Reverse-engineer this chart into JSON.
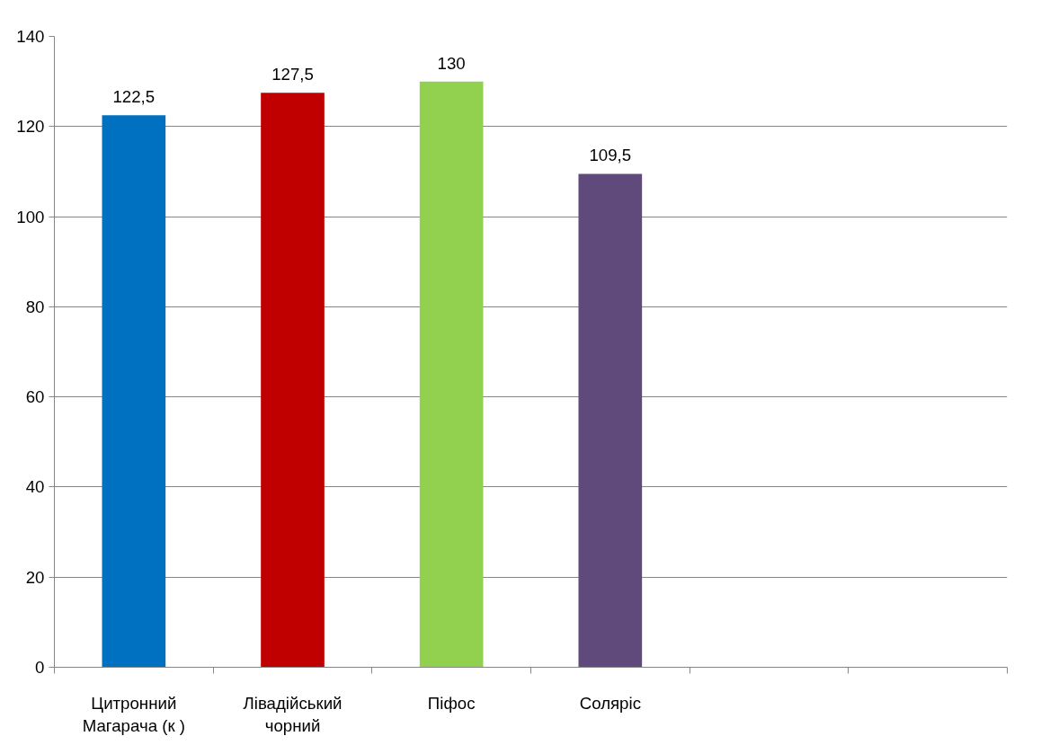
{
  "chart_data": {
    "type": "bar",
    "categories": [
      "Цитронний Магарача (к )",
      "Лівадійський чорний",
      "Піфос",
      "Соляріс",
      null,
      null
    ],
    "values": [
      122.5,
      127.5,
      130,
      109.5,
      null,
      null
    ],
    "colors": [
      "#0070c0",
      "#c00000",
      "#92d050",
      "#604a7b",
      "#4f81bd",
      "#4f81bd"
    ],
    "value_labels": [
      "122,5",
      "127,5",
      "130",
      "109,5",
      null,
      null
    ],
    "ylim": [
      0,
      140
    ],
    "yticks": [
      0,
      20,
      40,
      60,
      80,
      100,
      120,
      140
    ],
    "grid": "y"
  }
}
